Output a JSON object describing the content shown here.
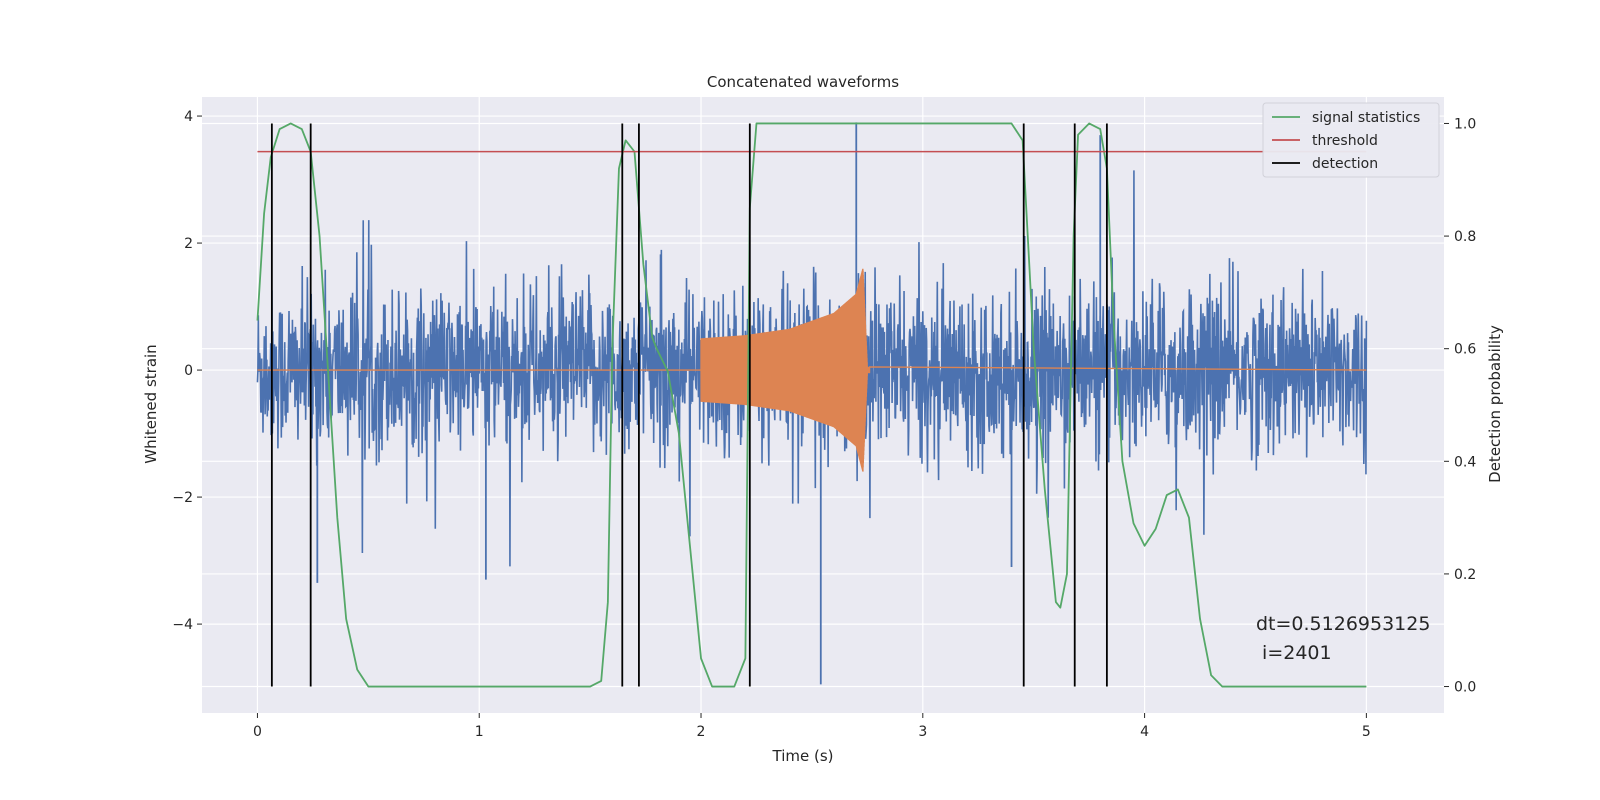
{
  "chart_data": {
    "type": "line",
    "title": "Concatenated waveforms",
    "xlabel": "Time (s)",
    "ylabel": "Whitened strain",
    "y2label": "Detection probability",
    "xlim": [
      -0.25,
      5.35
    ],
    "ylim": [
      -5.4,
      4.3
    ],
    "y2lim": [
      -0.047,
      1.047
    ],
    "xticks": [
      0,
      1,
      2,
      3,
      4,
      5
    ],
    "xtick_labels": [
      "0",
      "1",
      "2",
      "3",
      "4",
      "5"
    ],
    "yticks": [
      -4,
      -2,
      0,
      2,
      4
    ],
    "ytick_labels": [
      "−4",
      "−2",
      "0",
      "2",
      "4"
    ],
    "y2ticks": [
      0.0,
      0.2,
      0.4,
      0.6,
      0.8,
      1.0
    ],
    "y2tick_labels": [
      "0.0",
      "0.2",
      "0.4",
      "0.6",
      "0.8",
      "1.0"
    ],
    "grid": true,
    "background": "#eaeaf2",
    "legend_position": "top-right",
    "legend": [
      {
        "label": "signal statistics",
        "color": "#55a868"
      },
      {
        "label": "threshold",
        "color": "#c44e52"
      },
      {
        "label": "detection",
        "color": "#000000"
      }
    ],
    "series": [
      {
        "name": "",
        "axis": "left",
        "color": "#4c72b0",
        "description": "whitened noisy strain, amplitude envelope (min,max) approx",
        "x": [
          0,
          5
        ],
        "envelope_upper_typical": 1.6,
        "envelope_lower_typical": -1.5,
        "extreme_peaks": [
          {
            "x": 2.7,
            "y": 3.9
          },
          {
            "x": 2.54,
            "y": -4.95
          },
          {
            "x": 0.27,
            "y": -3.35
          },
          {
            "x": 1.03,
            "y": -3.3
          },
          {
            "x": 3.4,
            "y": -3.1
          },
          {
            "x": 3.8,
            "y": 3.7
          }
        ]
      },
      {
        "name": "",
        "axis": "left",
        "color": "#dd8452",
        "description": "injected chirp signal",
        "x": [
          0,
          2.0,
          2.2,
          2.4,
          2.6,
          2.7,
          2.73,
          2.75,
          5
        ],
        "amplitude": [
          0,
          0.5,
          0.55,
          0.65,
          0.9,
          1.2,
          1.6,
          0.05,
          0
        ]
      },
      {
        "name": "signal statistics",
        "axis": "right",
        "color": "#55a868",
        "x": [
          0.0,
          0.03,
          0.06,
          0.1,
          0.15,
          0.2,
          0.24,
          0.28,
          0.32,
          0.36,
          0.4,
          0.45,
          0.5,
          0.9,
          1.5,
          1.55,
          1.58,
          1.6,
          1.63,
          1.66,
          1.7,
          1.74,
          1.78,
          1.8,
          1.85,
          1.9,
          1.95,
          2.0,
          2.05,
          2.1,
          2.15,
          2.2,
          2.22,
          2.25,
          2.3,
          3.4,
          3.45,
          3.48,
          3.5,
          3.55,
          3.6,
          3.62,
          3.65,
          3.68,
          3.7,
          3.75,
          3.8,
          3.83,
          3.86,
          3.9,
          3.95,
          4.0,
          4.05,
          4.1,
          4.15,
          4.2,
          4.25,
          4.3,
          4.35,
          5.0
        ],
        "y": [
          0.65,
          0.84,
          0.94,
          0.99,
          1.0,
          0.99,
          0.95,
          0.8,
          0.55,
          0.3,
          0.12,
          0.03,
          0.0,
          0.0,
          0.0,
          0.01,
          0.15,
          0.6,
          0.92,
          0.97,
          0.95,
          0.75,
          0.62,
          0.6,
          0.56,
          0.45,
          0.25,
          0.05,
          0.0,
          0.0,
          0.0,
          0.05,
          0.85,
          1.0,
          1.0,
          1.0,
          0.97,
          0.75,
          0.6,
          0.35,
          0.15,
          0.14,
          0.2,
          0.8,
          0.98,
          1.0,
          0.99,
          0.92,
          0.65,
          0.4,
          0.29,
          0.25,
          0.28,
          0.34,
          0.35,
          0.3,
          0.12,
          0.02,
          0.0,
          0.0
        ]
      },
      {
        "name": "threshold",
        "axis": "right",
        "color": "#c44e52",
        "x": [
          0,
          5
        ],
        "y": [
          0.95,
          0.95
        ]
      }
    ],
    "detections": [
      0.065,
      0.24,
      1.645,
      1.72,
      2.22,
      3.455,
      3.685,
      3.83
    ],
    "annotations": [
      "dt=0.5126953125",
      " i=2401"
    ]
  }
}
